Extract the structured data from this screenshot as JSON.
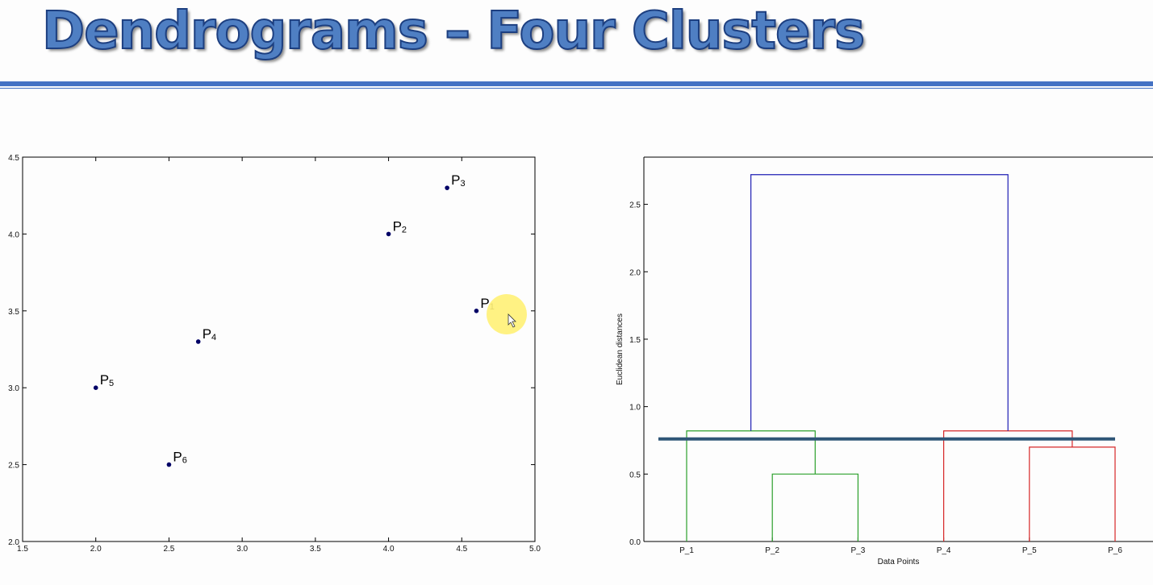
{
  "slide": {
    "title": "Dendrograms – Four Clusters",
    "accent_color": "#4472c4"
  },
  "chart_data": [
    {
      "type": "scatter",
      "xlim": [
        1.5,
        5.0
      ],
      "ylim": [
        2.0,
        4.5
      ],
      "xticks": [
        "1.5",
        "2.0",
        "2.5",
        "3.0",
        "3.5",
        "4.0",
        "4.5",
        "5.0"
      ],
      "yticks": [
        "2.0",
        "2.5",
        "3.0",
        "3.5",
        "4.0",
        "4.5"
      ],
      "grid": false,
      "marker_color": "#000066",
      "points": [
        {
          "label": "P",
          "sub": "1",
          "x": 4.6,
          "y": 3.5
        },
        {
          "label": "P",
          "sub": "2",
          "x": 4.0,
          "y": 4.0
        },
        {
          "label": "P",
          "sub": "3",
          "x": 4.4,
          "y": 4.3
        },
        {
          "label": "P",
          "sub": "4",
          "x": 2.7,
          "y": 3.3
        },
        {
          "label": "P",
          "sub": "5",
          "x": 2.0,
          "y": 3.0
        },
        {
          "label": "P",
          "sub": "6",
          "x": 2.5,
          "y": 2.5
        }
      ]
    },
    {
      "type": "dendrogram",
      "xlabel": "Data Points",
      "ylabel": "Euclidean distances",
      "leaves": [
        "P_1",
        "P_2",
        "P_3",
        "P_4",
        "P_5",
        "P_6"
      ],
      "ylim": [
        0.0,
        2.85
      ],
      "yticks": [
        "0.0",
        "0.5",
        "1.0",
        "1.5",
        "2.0",
        "2.5"
      ],
      "grid": false,
      "cut_height": 0.76,
      "cut_color": "#2f5677",
      "links": [
        {
          "left": 1,
          "right": 2,
          "height": 0.5,
          "color": "#2ca02c"
        },
        {
          "left": 4,
          "right": 5,
          "height": 0.7,
          "color": "#d62728"
        },
        {
          "left": 0,
          "right": [
            1,
            2
          ],
          "height": 0.82,
          "color": "#2ca02c"
        },
        {
          "left": 3,
          "right": [
            4,
            5
          ],
          "height": 0.82,
          "color": "#d62728"
        },
        {
          "left": [
            0,
            1,
            2
          ],
          "right": [
            3,
            4,
            5
          ],
          "height": 2.72,
          "color": "#1f1fb4"
        }
      ]
    }
  ]
}
